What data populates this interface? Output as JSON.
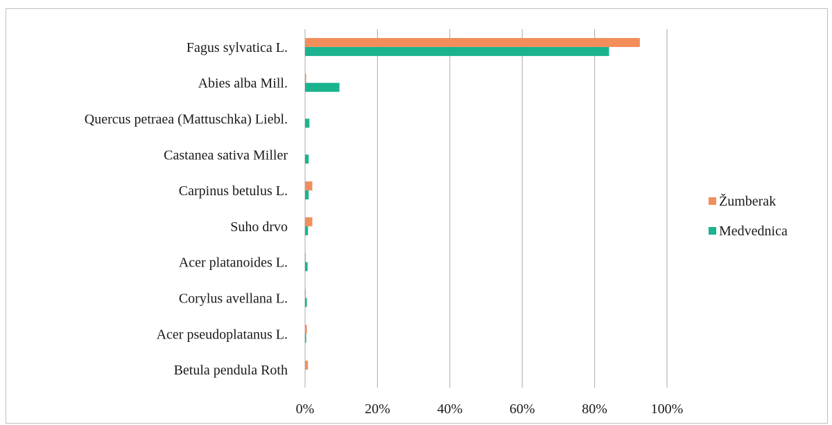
{
  "chart_data": {
    "type": "bar",
    "orientation": "horizontal",
    "categories": [
      "Fagus sylvatica L.",
      "Abies alba Mill.",
      "Quercus petraea (Mattuschka) Liebl.",
      "Castanea sativa Miller",
      "Carpinus betulus L.",
      "Suho drvo",
      "Acer platanoides L.",
      "Corylus avellana L.",
      "Acer pseudoplatanus L.",
      "Betula pendula Roth"
    ],
    "series": [
      {
        "name": "Žumberak",
        "color": "#f28e5c",
        "values": [
          92.5,
          0.3,
          0,
          0,
          2.0,
          2.0,
          0.2,
          0.2,
          0.5,
          0.8
        ]
      },
      {
        "name": "Medvednica",
        "color": "#1bb38e",
        "values": [
          84.0,
          9.5,
          1.2,
          1.0,
          1.0,
          0.8,
          0.7,
          0.5,
          0.3,
          0
        ]
      }
    ],
    "xlim": [
      0,
      100
    ],
    "xticks": [
      "0%",
      "20%",
      "40%",
      "60%",
      "80%",
      "100%"
    ],
    "grid": "vertical",
    "legend": "right"
  }
}
